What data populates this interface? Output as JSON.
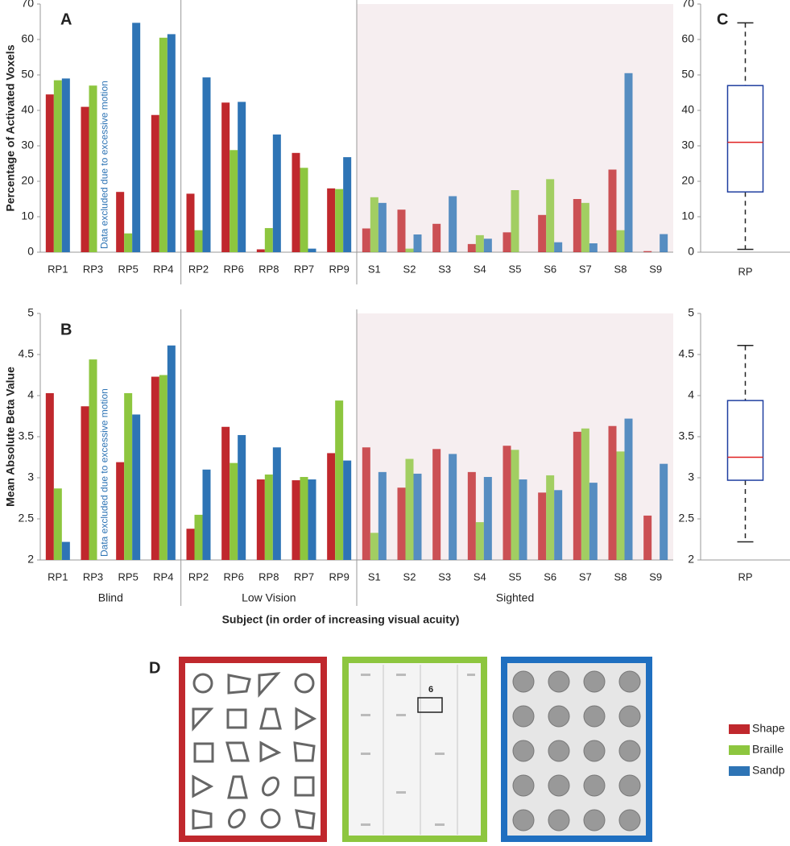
{
  "chart_data": [
    {
      "type": "bar",
      "label": "A",
      "ylabel": "Percentage of Activated Voxels",
      "categories": [
        "RP1",
        "RP3",
        "RP5",
        "RP4",
        "RP2",
        "RP6",
        "RP8",
        "RP7",
        "RP9",
        "S1",
        "S2",
        "S3",
        "S4",
        "S5",
        "S6",
        "S7",
        "S8",
        "S9"
      ],
      "series": [
        {
          "name": "Shape",
          "color": "#c0282d",
          "values": [
            44.5,
            41,
            17,
            38.7,
            16.5,
            42.2,
            0.8,
            28,
            18,
            6.7,
            12,
            8,
            2.3,
            5.6,
            10.5,
            15,
            23.3,
            0.3
          ]
        },
        {
          "name": "Braille",
          "color": "#8dc63f",
          "values": [
            48.5,
            47,
            5.3,
            60.5,
            6.2,
            28.8,
            6.8,
            23.8,
            17.8,
            15.5,
            1,
            null,
            4.8,
            17.5,
            20.6,
            13.9,
            6.2,
            null
          ]
        },
        {
          "name": "Sandp",
          "color": "#2e74b5",
          "values": [
            49,
            null,
            64.7,
            61.5,
            49.3,
            42.4,
            33.2,
            1,
            26.8,
            13.9,
            5,
            15.8,
            3.8,
            null,
            2.8,
            2.5,
            50.5,
            5.1
          ]
        }
      ],
      "groups": [
        {
          "count": 4
        },
        {
          "count": 5
        },
        {
          "count": 9,
          "background": "#f6eef0",
          "bar_opacity": 0.8
        }
      ],
      "ylim": [
        0,
        70
      ],
      "yticks": [
        0,
        10,
        20,
        30,
        40,
        50,
        60,
        70
      ],
      "annotation": "Data excluded due to excessive motion"
    },
    {
      "type": "bar",
      "label": "B",
      "ylabel": "Mean Absolute Beta Value",
      "xlabel": "Subject (in order of increasing visual acuity)",
      "categories": [
        "RP1",
        "RP3",
        "RP5",
        "RP4",
        "RP2",
        "RP6",
        "RP8",
        "RP7",
        "RP9",
        "S1",
        "S2",
        "S3",
        "S4",
        "S5",
        "S6",
        "S7",
        "S8",
        "S9"
      ],
      "series": [
        {
          "color": "#c0282d",
          "values": [
            4.03,
            3.87,
            3.19,
            4.23,
            2.38,
            3.62,
            2.98,
            2.97,
            3.3,
            3.37,
            2.88,
            3.35,
            3.07,
            3.39,
            2.82,
            3.56,
            3.63,
            2.54
          ]
        },
        {
          "color": "#8dc63f",
          "values": [
            2.87,
            4.44,
            4.03,
            4.25,
            2.55,
            3.18,
            3.04,
            3.01,
            3.94,
            2.33,
            3.23,
            null,
            2.46,
            3.34,
            3.03,
            3.6,
            3.32,
            null
          ]
        },
        {
          "color": "#2e74b5",
          "values": [
            2.22,
            null,
            3.77,
            4.61,
            3.1,
            3.52,
            3.37,
            2.98,
            3.21,
            3.07,
            3.05,
            3.29,
            3.01,
            2.98,
            2.85,
            2.94,
            3.72,
            3.17
          ]
        }
      ],
      "groups": [
        {
          "label": "Blind",
          "count": 4
        },
        {
          "label": "Low Vision",
          "count": 5
        },
        {
          "label": "Sighted",
          "count": 9,
          "background": "#f6eef0",
          "bar_opacity": 0.8
        }
      ],
      "ylim": [
        2,
        5
      ],
      "yticks": [
        2,
        2.5,
        3,
        3.5,
        4,
        4.5,
        5
      ],
      "annotation": "Data excluded due to excessive motion"
    },
    {
      "type": "box",
      "label": "C",
      "categories": [
        "RP"
      ],
      "min": [
        0.8
      ],
      "q1": [
        17
      ],
      "median": [
        31
      ],
      "q3": [
        47
      ],
      "max": [
        64.7
      ],
      "color": "#1f3fa0",
      "median_color": "#e02020",
      "ylim": [
        0,
        70
      ],
      "yticks": [
        0,
        10,
        20,
        30,
        40,
        50,
        60,
        70
      ]
    },
    {
      "type": "box",
      "categories": [
        "RP"
      ],
      "min": [
        2.22
      ],
      "q1": [
        2.97
      ],
      "median": [
        3.25
      ],
      "q3": [
        3.94
      ],
      "max": [
        4.61
      ],
      "color": "#1f3fa0",
      "median_color": "#e02020",
      "ylim": [
        2,
        5
      ],
      "yticks": [
        2,
        2.5,
        3,
        3.5,
        4,
        4.5,
        5
      ]
    }
  ],
  "panel_d": {
    "label": "D",
    "braille_number": "6"
  }
}
